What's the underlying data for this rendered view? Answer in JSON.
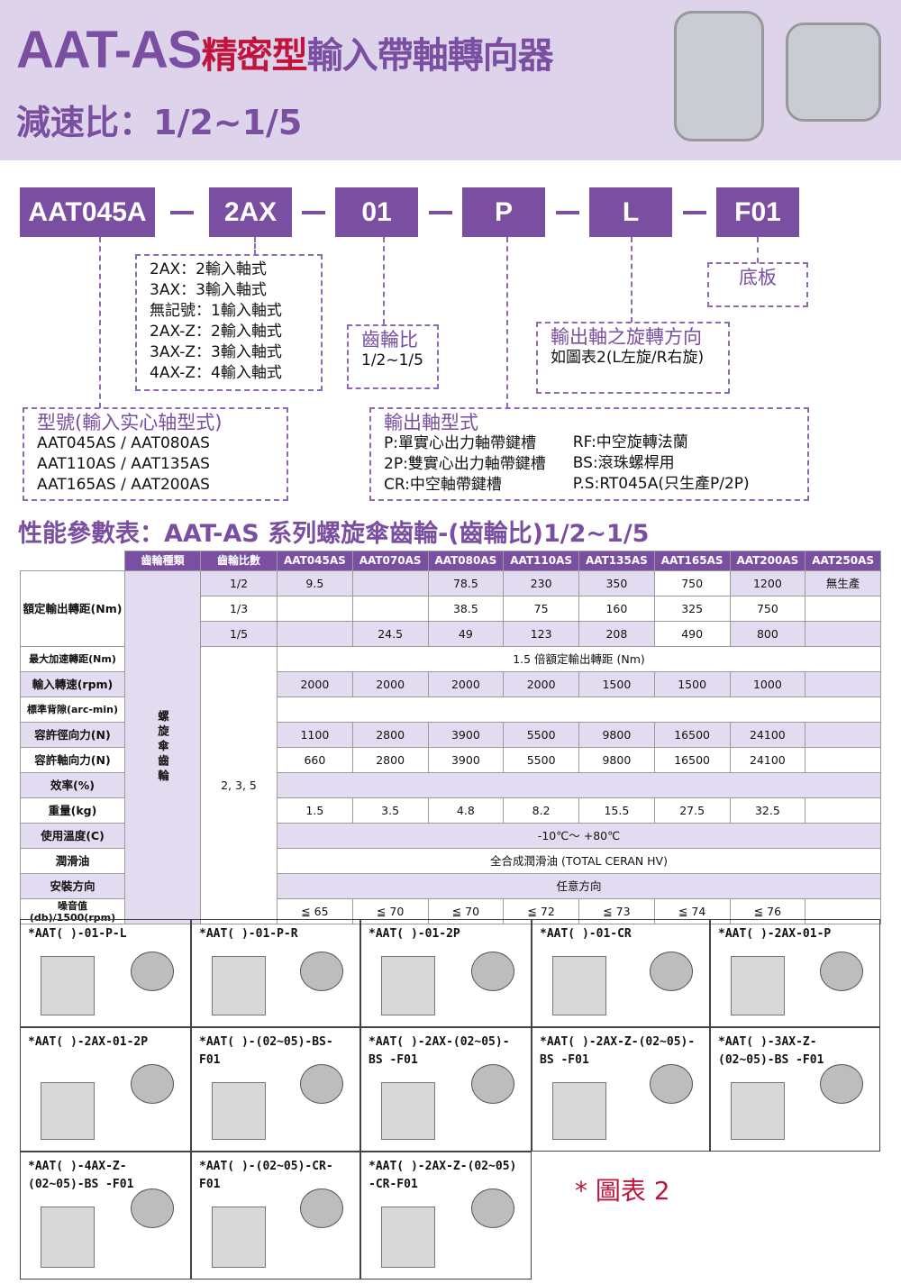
{
  "header": {
    "title_en": "AAT-AS",
    "title_cn1": "精密型",
    "title_cn2": "輸入帶軸轉向器",
    "ratio_line": "減速比：1/2~1/5"
  },
  "code": {
    "parts": [
      "AAT045A",
      "2AX",
      "01",
      "P",
      "L",
      "F01"
    ]
  },
  "boxes": {
    "input_shaft": [
      "2AX：2輸入軸式",
      "3AX：3輸入軸式",
      "無記號：1輸入軸式",
      "2AX-Z：2輸入軸式",
      "3AX-Z：3輸入軸式",
      "4AX-Z：4輸入軸式"
    ],
    "gear_ratio": {
      "title": "齒輪比",
      "value": "1/2~1/5"
    },
    "rotation": {
      "title": "輸出軸之旋轉方向",
      "value": "如圖表2(L左旋/R右旋)"
    },
    "base": {
      "title": "底板"
    },
    "model": {
      "title": "型號(輸入实心轴型式)",
      "lines": [
        "AAT045AS / AAT080AS",
        "AAT110AS / AAT135AS",
        "AAT165AS / AAT200AS"
      ]
    },
    "output": {
      "title": "輸出軸型式",
      "left": [
        "P:單實心出力軸帶鍵槽",
        "2P:雙實心出力軸帶鍵槽",
        "CR:中空軸帶鍵槽"
      ],
      "right": [
        "RF:中空旋轉法蘭",
        "BS:滾珠螺桿用",
        "P.S:RT045A(只生產P/2P)"
      ]
    }
  },
  "section_title": "性能參數表：AAT-AS 系列螺旋傘齒輪-(齒輪比)1/2~1/5",
  "table": {
    "headers": [
      "齒輪種類",
      "齒輪比數",
      "AAT045AS",
      "AAT070AS",
      "AAT080AS",
      "AAT110AS",
      "AAT135AS",
      "AAT165AS",
      "AAT200AS",
      "AAT250AS"
    ],
    "gear_type": "螺旋傘齒輪",
    "ratio_all": "2, 3, 5",
    "rated_label": "額定輸出轉距(Nm)",
    "rated": [
      {
        "ratio": "1/2",
        "v": [
          "9.5",
          "",
          "78.5",
          "230",
          "350",
          "750",
          "1200",
          "無生產"
        ]
      },
      {
        "ratio": "1/3",
        "v": [
          "",
          "",
          "38.5",
          "75",
          "160",
          "325",
          "750",
          ""
        ]
      },
      {
        "ratio": "1/5",
        "v": [
          "",
          "24.5",
          "49",
          "123",
          "208",
          "490",
          "800",
          ""
        ]
      }
    ],
    "rows": [
      {
        "label": "最大加速轉距(Nm)",
        "span": "1.5 倍額定輸出轉距 (Nm)"
      },
      {
        "label": "輸入轉速(rpm)",
        "v": [
          "2000",
          "2000",
          "2000",
          "2000",
          "1500",
          "1500",
          "1000",
          ""
        ]
      },
      {
        "label": "標準背隙(arc-min)",
        "span": ""
      },
      {
        "label": "容許徑向力(N)",
        "v": [
          "1100",
          "2800",
          "3900",
          "5500",
          "9800",
          "16500",
          "24100",
          ""
        ]
      },
      {
        "label": "容許軸向力(N)",
        "v": [
          "660",
          "2800",
          "3900",
          "5500",
          "9800",
          "16500",
          "24100",
          ""
        ]
      },
      {
        "label": "效率(%)",
        "span": ""
      },
      {
        "label": "重量(kg)",
        "v": [
          "1.5",
          "3.5",
          "4.8",
          "8.2",
          "15.5",
          "27.5",
          "32.5",
          ""
        ]
      },
      {
        "label": "使用溫度(C)",
        "span": "-10℃～ +80℃"
      },
      {
        "label": "潤滑油",
        "span": "全合成潤滑油 (TOTAL CERAN HV)"
      },
      {
        "label": "安裝方向",
        "span": "任意方向"
      },
      {
        "label": "噪音值(db)/1500(rpm)",
        "v": [
          "≦ 65",
          "≦ 70",
          "≦ 70",
          "≦ 72",
          "≦ 73",
          "≦ 74",
          "≦ 76",
          ""
        ]
      }
    ]
  },
  "diagrams": [
    "*AAT( )-01-P-L",
    "*AAT( )-01-P-R",
    "*AAT( )-01-2P",
    "*AAT( )-01-CR",
    "*AAT( )-2AX-01-P",
    "*AAT( )-2AX-01-2P",
    "*AAT( )-(02~05)-BS-F01",
    "*AAT( )-2AX-(02~05)-BS -F01",
    "*AAT( )-2AX-Z-(02~05)-BS -F01",
    "*AAT( )-3AX-Z-(02~05)-BS -F01",
    "*AAT( )-4AX-Z-(02~05)-BS -F01",
    "*AAT( )-(02~05)-CR-F01",
    "*AAT( )-2AX-Z-(02~05) -CR-F01"
  ],
  "figure_label": "* 圖表 2"
}
